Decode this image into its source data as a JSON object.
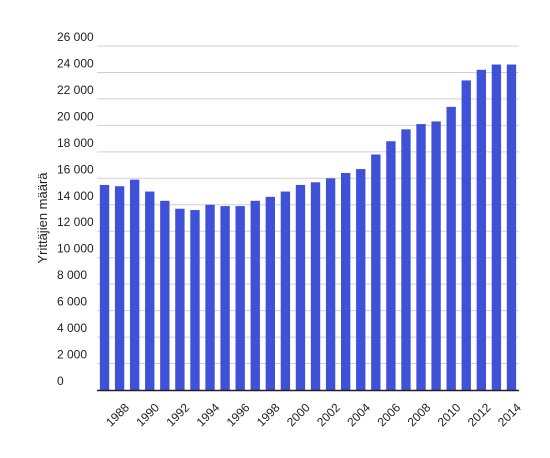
{
  "colors": {
    "bar": "#3f51d6",
    "grid": "#d0d0d0",
    "axis": "#222222"
  },
  "chart_data": {
    "type": "bar",
    "title": "",
    "xlabel": "",
    "ylabel": "Yrittäjien määrä",
    "ylim": [
      0,
      26000
    ],
    "grid": true,
    "legend": "none",
    "y_ticks": [
      0,
      2000,
      4000,
      6000,
      8000,
      10000,
      12000,
      14000,
      16000,
      18000,
      20000,
      22000,
      24000,
      26000
    ],
    "y_tick_labels": [
      "0",
      "2 000",
      "4 000",
      "6 000",
      "8 000",
      "10 000",
      "12 000",
      "14 000",
      "16 000",
      "18 000",
      "20 000",
      "22 000",
      "24 000",
      "26 000"
    ],
    "x_tick_labels": [
      "1988",
      "1990",
      "1992",
      "1994",
      "1996",
      "1998",
      "2000",
      "2002",
      "2004",
      "2006",
      "2008",
      "2010",
      "2012",
      "2014"
    ],
    "categories": [
      "1987",
      "1988",
      "1989",
      "1990",
      "1991",
      "1992",
      "1993",
      "1994",
      "1995",
      "1996",
      "1997",
      "1998",
      "1999",
      "2000",
      "2001",
      "2002",
      "2003",
      "2004",
      "2005",
      "2006",
      "2007",
      "2008",
      "2009",
      "2010",
      "2011",
      "2012",
      "2013",
      "2014"
    ],
    "values": [
      15500,
      15400,
      15900,
      15000,
      14300,
      13700,
      13600,
      14000,
      13900,
      13900,
      14300,
      14600,
      15000,
      15500,
      15700,
      16000,
      16400,
      16700,
      17800,
      18800,
      19700,
      20100,
      20300,
      21400,
      23400,
      24200,
      24600,
      24600
    ]
  }
}
